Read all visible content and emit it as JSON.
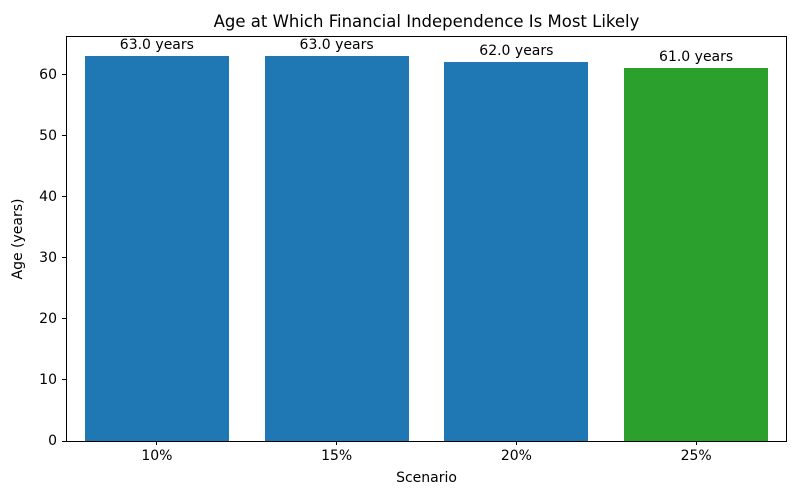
{
  "chart_data": {
    "type": "bar",
    "title": "Age at Which Financial Independence Is Most Likely",
    "xlabel": "Scenario",
    "ylabel": "Age (years)",
    "categories": [
      "10%",
      "15%",
      "20%",
      "25%"
    ],
    "values": [
      63.0,
      63.0,
      62.0,
      61.0
    ],
    "bar_labels": [
      "63.0 years",
      "63.0 years",
      "62.0 years",
      "61.0 years"
    ],
    "bar_colors": [
      "#1f77b4",
      "#1f77b4",
      "#1f77b4",
      "#2ca02c"
    ],
    "ylim": [
      0,
      66.15
    ],
    "yticks": [
      0,
      10,
      20,
      30,
      40,
      50,
      60
    ],
    "grid": false,
    "legend_position": "none",
    "plot_background": "#ffffff",
    "spine_color": "#000000"
  }
}
